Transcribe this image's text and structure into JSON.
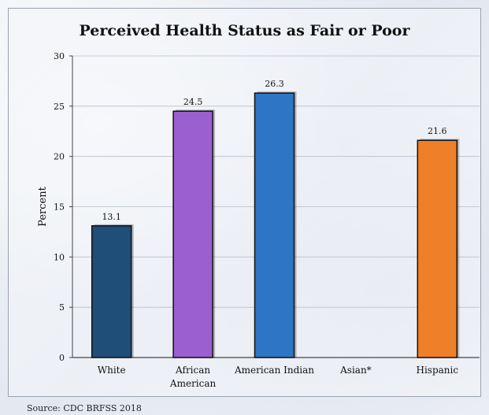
{
  "chart_data": {
    "type": "bar",
    "title": "Perceived Health Status as Fair or Poor",
    "ylabel": "Percent",
    "xlabel": "",
    "ylim": [
      0,
      30
    ],
    "yticks": [
      0,
      5,
      10,
      15,
      20,
      25,
      30
    ],
    "grid": true,
    "categories": [
      {
        "label": [
          "White"
        ],
        "value": 13.1,
        "label_text": "13.1",
        "color": "#1f4e79"
      },
      {
        "label": [
          "African",
          "American"
        ],
        "value": 24.5,
        "label_text": "24.5",
        "color": "#9b5fd0"
      },
      {
        "label": [
          "American Indian"
        ],
        "value": 26.3,
        "label_text": "26.3",
        "color": "#2e75c6"
      },
      {
        "label": [
          "Asian*"
        ],
        "value": null,
        "label_text": "",
        "color": "#999999"
      },
      {
        "label": [
          "Hispanic"
        ],
        "value": 21.6,
        "label_text": "21.6",
        "color": "#f07f2a"
      }
    ]
  },
  "source": "Source: CDC BRFSS 2018"
}
